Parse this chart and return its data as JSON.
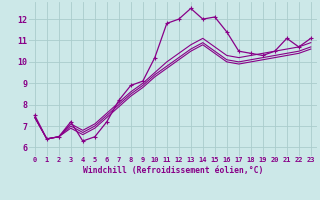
{
  "xlabel": "Windchill (Refroidissement éolien,°C)",
  "bg_color": "#cce8e8",
  "line_color": "#880088",
  "grid_color": "#aacccc",
  "x_ticks": [
    0,
    1,
    2,
    3,
    4,
    5,
    6,
    7,
    8,
    9,
    10,
    11,
    12,
    13,
    14,
    15,
    16,
    17,
    18,
    19,
    20,
    21,
    22,
    23
  ],
  "y_ticks": [
    6,
    7,
    8,
    9,
    10,
    11,
    12
  ],
  "xlim": [
    -0.5,
    23.5
  ],
  "ylim": [
    5.6,
    12.8
  ],
  "series0": [
    7.5,
    6.4,
    6.5,
    7.2,
    6.3,
    6.5,
    7.2,
    8.2,
    8.9,
    9.1,
    10.2,
    11.8,
    12.0,
    12.5,
    12.0,
    12.1,
    11.4,
    10.5,
    10.4,
    10.3,
    10.5,
    11.1,
    10.7,
    11.1
  ],
  "series1": [
    7.4,
    6.4,
    6.5,
    7.1,
    6.8,
    7.1,
    7.6,
    8.1,
    8.6,
    9.0,
    9.5,
    10.0,
    10.4,
    10.8,
    11.1,
    10.7,
    10.3,
    10.2,
    10.3,
    10.4,
    10.5,
    10.6,
    10.7,
    10.9
  ],
  "series2": [
    7.4,
    6.4,
    6.5,
    7.0,
    6.7,
    7.0,
    7.5,
    8.0,
    8.5,
    8.9,
    9.4,
    9.8,
    10.2,
    10.6,
    10.9,
    10.5,
    10.1,
    10.0,
    10.1,
    10.2,
    10.3,
    10.4,
    10.5,
    10.7
  ],
  "series3": [
    7.4,
    6.4,
    6.5,
    6.9,
    6.6,
    6.9,
    7.4,
    7.9,
    8.4,
    8.8,
    9.3,
    9.7,
    10.1,
    10.5,
    10.8,
    10.4,
    10.0,
    9.9,
    10.0,
    10.1,
    10.2,
    10.3,
    10.4,
    10.6
  ]
}
